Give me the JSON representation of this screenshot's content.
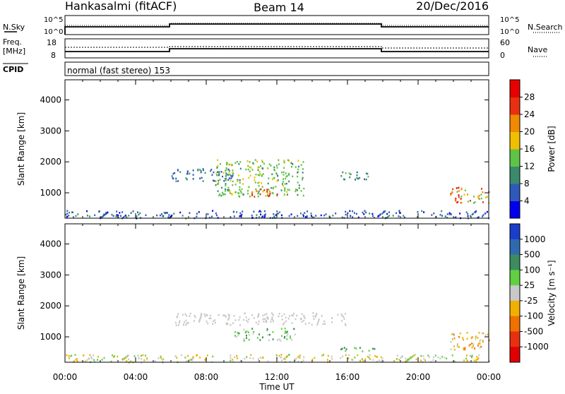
{
  "header": {
    "station": "Hankasalmi (fitACF)",
    "beam": "Beam 14",
    "date": "20/Dec/2016"
  },
  "status_panels": {
    "nsky_label": "N.Sky",
    "nsky_ticks": [
      "10^5",
      "10^0"
    ],
    "nsearch_label": "N.Search",
    "nsearch_ticks": [
      "10^5",
      "10^0"
    ],
    "freq_label_1": "Freq.",
    "freq_label_2": "[MHz]",
    "freq_ticks": [
      "18",
      "8"
    ],
    "nave_label": "Nave",
    "nave_ticks": [
      "60",
      "0"
    ],
    "cpid_label": "CPID",
    "cpid_text": "normal (fast stereo) 153"
  },
  "chart_data": [
    {
      "type": "heatmap",
      "title": "",
      "ylabel": "Slant Range [km]",
      "xlabel": "",
      "x_range_hours": [
        0,
        24
      ],
      "ylim": [
        180,
        4650
      ],
      "yticks": [
        "1000",
        "2000",
        "3000",
        "4000"
      ],
      "colorbar_label": "Power [dB]",
      "colorbar_ticks": [
        "4",
        "8",
        "12",
        "16",
        "20",
        "24",
        "28"
      ],
      "colorbar_colors": [
        "#0000ee",
        "#2e59b8",
        "#3b8a6c",
        "#5fc346",
        "#f0c000",
        "#f08a00",
        "#e83010",
        "#e80000"
      ],
      "features": [
        {
          "x_hours": [
            0.0,
            24.0
          ],
          "range_km": [
            200,
            450
          ],
          "value": "4-12 dB ground scatter"
        },
        {
          "x_hours": [
            6.0,
            9.5
          ],
          "range_km": [
            1400,
            1800
          ],
          "value": "8-12 dB"
        },
        {
          "x_hours": [
            8.5,
            13.5
          ],
          "range_km": [
            900,
            2100
          ],
          "value": "12-20 dB"
        },
        {
          "x_hours": [
            10.5,
            12.0
          ],
          "range_km": [
            900,
            1150
          ],
          "value": "24-28 dB"
        },
        {
          "x_hours": [
            15.5,
            17.5
          ],
          "range_km": [
            1450,
            1700
          ],
          "value": "8-16 dB"
        },
        {
          "x_hours": [
            21.8,
            24.0
          ],
          "range_km": [
            700,
            1200
          ],
          "value": "12-28 dB"
        }
      ]
    },
    {
      "type": "heatmap",
      "title": "",
      "ylabel": "Slant Range [km]",
      "xlabel": "Time UT",
      "xticks": [
        "00:00",
        "04:00",
        "08:00",
        "12:00",
        "16:00",
        "20:00",
        "00:00"
      ],
      "x_range_hours": [
        0,
        24
      ],
      "ylim": [
        180,
        4650
      ],
      "yticks": [
        "1000",
        "2000",
        "3000",
        "4000"
      ],
      "colorbar_label": "Velocity [m s⁻¹]",
      "colorbar_ticks": [
        "1000",
        "500",
        "100",
        "25",
        "-25",
        "-100",
        "-500",
        "-1000"
      ],
      "colorbar_colors": [
        "#1a3dcc",
        "#2e6ab0",
        "#3c8c60",
        "#5fd040",
        "#c8c8c8",
        "#f0b000",
        "#f07000",
        "#e83010",
        "#e00000"
      ],
      "features": [
        {
          "x_hours": [
            0.0,
            24.0
          ],
          "range_km": [
            200,
            450
          ],
          "value": "-100 to 100 m/s"
        },
        {
          "x_hours": [
            6.0,
            16.0
          ],
          "range_km": [
            1400,
            1800
          ],
          "value": "ground scatter grey"
        },
        {
          "x_hours": [
            9.5,
            13.0
          ],
          "range_km": [
            900,
            1300
          ],
          "value": "25-500 m/s"
        },
        {
          "x_hours": [
            15.5,
            17.5
          ],
          "range_km": [
            550,
            700
          ],
          "value": "100-500 m/s"
        },
        {
          "x_hours": [
            21.8,
            24.0
          ],
          "range_km": [
            600,
            1200
          ],
          "value": "-500 to 25 m/s"
        }
      ]
    }
  ]
}
